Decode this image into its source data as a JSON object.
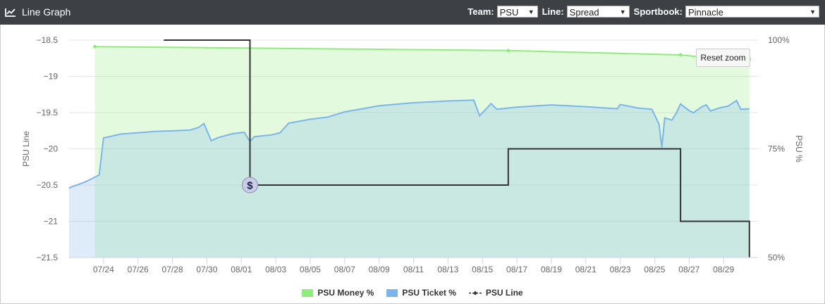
{
  "header": {
    "title": "Line Graph",
    "team_label": "Team:",
    "team_value": "PSU",
    "line_label": "Line:",
    "line_value": "Spread",
    "sportsbook_label": "Sportbook:",
    "sportsbook_value": "Pinnacle"
  },
  "reset_zoom_label": "Reset zoom",
  "icons": {
    "title_icon": "line-chart-icon",
    "select_arrow": "dropdown-arrow-icon",
    "marker": "dollar-sign-icon"
  },
  "colors": {
    "money": "#90ed7d",
    "ticket": "#7cb5ec",
    "line": "#333333"
  },
  "chart_data": {
    "type": "line",
    "x_start": "07/22",
    "x_end": "08/31",
    "x_tick_labels": [
      "07/24",
      "07/26",
      "07/28",
      "07/30",
      "08/01",
      "08/03",
      "08/05",
      "08/07",
      "08/09",
      "08/11",
      "08/13",
      "08/15",
      "08/17",
      "08/19",
      "08/21",
      "08/23",
      "08/25",
      "08/27",
      "08/29"
    ],
    "left_axis": {
      "title": "PSU Line",
      "range": [
        -21.5,
        -18.5
      ],
      "ticks": [
        -18.5,
        -19,
        -19.5,
        -20,
        -20.5,
        -21,
        -21.5
      ],
      "tick_labels": [
        "−18.5",
        "−19",
        "−19.5",
        "−20",
        "−20.5",
        "−21",
        "−21.5"
      ]
    },
    "right_axis": {
      "title": "PSU %",
      "range": [
        50,
        100
      ],
      "ticks": [
        50,
        75,
        100
      ],
      "tick_labels": [
        "50%",
        "75%",
        "100%"
      ]
    },
    "legend_position": "bottom-center",
    "grid": true,
    "series": [
      {
        "name": "PSU Money %",
        "type": "area",
        "axis": "right",
        "color": "#90ed7d",
        "points": [
          [
            "07/23 12:00",
            98.5
          ],
          [
            "08/16 12:00",
            97.6
          ],
          [
            "08/26 12:00",
            96.6
          ],
          [
            "08/27 12:00",
            96.2
          ],
          [
            "08/30 12:00",
            95.6
          ]
        ]
      },
      {
        "name": "PSU Ticket %",
        "type": "area",
        "axis": "right",
        "color": "#7cb5ec",
        "points": [
          [
            "07/22 00:00",
            66
          ],
          [
            "07/23 00:00",
            67.5
          ],
          [
            "07/23 18:00",
            69
          ],
          [
            "07/24 00:00",
            77.5
          ],
          [
            "07/25 00:00",
            78.4
          ],
          [
            "07/27 00:00",
            79
          ],
          [
            "07/29 00:00",
            79.3
          ],
          [
            "07/29 12:00",
            79.9
          ],
          [
            "07/29 20:00",
            80.8
          ],
          [
            "07/30 06:00",
            76.9
          ],
          [
            "07/30 16:00",
            77.6
          ],
          [
            "07/31 12:00",
            78.5
          ],
          [
            "08/01 04:00",
            78.8
          ],
          [
            "08/01 12:00",
            76.7
          ],
          [
            "08/01 18:00",
            77.8
          ],
          [
            "08/02 18:00",
            78.2
          ],
          [
            "08/03 06:00",
            78.7
          ],
          [
            "08/03 18:00",
            80.9
          ],
          [
            "08/05 00:00",
            81.8
          ],
          [
            "08/06 00:00",
            82.3
          ],
          [
            "08/07 00:00",
            83.5
          ],
          [
            "08/09 00:00",
            84.9
          ],
          [
            "08/11 00:00",
            85.6
          ],
          [
            "08/13 00:00",
            86.0
          ],
          [
            "08/14 12:00",
            86.2
          ],
          [
            "08/14 20:00",
            82.6
          ],
          [
            "08/15 06:00",
            84.3
          ],
          [
            "08/15 12:00",
            85.4
          ],
          [
            "08/15 20:00",
            84.1
          ],
          [
            "08/17 00:00",
            84.6
          ],
          [
            "08/19 00:00",
            85.1
          ],
          [
            "08/21 00:00",
            84.7
          ],
          [
            "08/22 20:00",
            84.2
          ],
          [
            "08/23 00:00",
            85.2
          ],
          [
            "08/24 00:00",
            84.4
          ],
          [
            "08/24 20:00",
            84.1
          ],
          [
            "08/25 06:00",
            80.7
          ],
          [
            "08/25 10:00",
            75.3
          ],
          [
            "08/25 14:00",
            82.1
          ],
          [
            "08/26 00:00",
            81.6
          ],
          [
            "08/26 06:00",
            83.2
          ],
          [
            "08/26 12:00",
            85.3
          ],
          [
            "08/27 00:00",
            83.8
          ],
          [
            "08/27 06:00",
            83.3
          ],
          [
            "08/27 18:00",
            84.7
          ],
          [
            "08/28 00:00",
            85.1
          ],
          [
            "08/28 06:00",
            83.7
          ],
          [
            "08/28 18:00",
            84.4
          ],
          [
            "08/29 06:00",
            84.8
          ],
          [
            "08/29 18:00",
            86.1
          ],
          [
            "08/30 00:00",
            84.1
          ],
          [
            "08/30 12:00",
            84.2
          ]
        ]
      },
      {
        "name": "PSU Line",
        "type": "step-line",
        "axis": "left",
        "color": "#333333",
        "points": [
          [
            "07/27 12:00",
            -18.5
          ],
          [
            "08/01 12:00",
            -18.5
          ],
          [
            "08/01 12:00",
            -20.5
          ],
          [
            "08/16 12:00",
            -20.5
          ],
          [
            "08/16 12:00",
            -20
          ],
          [
            "08/26 12:00",
            -20
          ],
          [
            "08/26 12:00",
            -21
          ],
          [
            "08/30 12:00",
            -21
          ],
          [
            "08/30 12:00",
            -21.5
          ]
        ]
      }
    ],
    "marker": {
      "series": "PSU Line",
      "at": [
        "08/01 12:00",
        -20.5
      ],
      "symbol": "$"
    }
  }
}
